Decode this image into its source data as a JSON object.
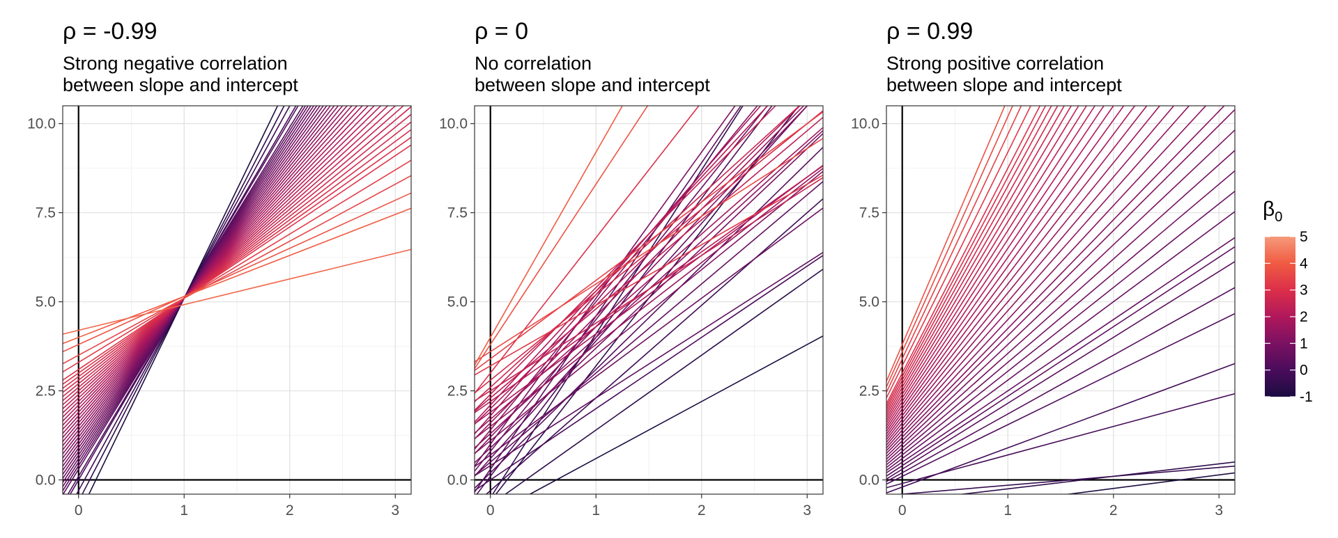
{
  "chart_data": [
    {
      "type": "line",
      "title": "ρ = -0.99",
      "subtitle": [
        "Strong negative correlation",
        "between slope and intercept"
      ],
      "xlabel": "",
      "ylabel": "",
      "xlim": [
        -0.15,
        3.15
      ],
      "ylim": [
        -0.4,
        10.5
      ],
      "xticks": [
        0,
        1,
        2,
        3
      ],
      "yticks": [
        0.0,
        2.5,
        5.0,
        7.5,
        10.0
      ],
      "ytick_labels": [
        "0.0",
        "2.5",
        "5.0",
        "7.5",
        "10.0"
      ],
      "grid": true,
      "series": [
        {
          "intercept": -1.0,
          "slope": 6.1
        },
        {
          "intercept": -0.6,
          "slope": 5.7
        },
        {
          "intercept": -0.3,
          "slope": 5.4
        },
        {
          "intercept": 0.0,
          "slope": 5.1
        },
        {
          "intercept": 0.1,
          "slope": 5.0
        },
        {
          "intercept": 0.3,
          "slope": 4.8
        },
        {
          "intercept": 0.4,
          "slope": 4.7
        },
        {
          "intercept": 0.5,
          "slope": 4.6
        },
        {
          "intercept": 0.6,
          "slope": 4.5
        },
        {
          "intercept": 0.7,
          "slope": 4.4
        },
        {
          "intercept": 0.8,
          "slope": 4.3
        },
        {
          "intercept": 0.9,
          "slope": 4.2
        },
        {
          "intercept": 1.0,
          "slope": 4.1
        },
        {
          "intercept": 1.1,
          "slope": 4.0
        },
        {
          "intercept": 1.2,
          "slope": 3.9
        },
        {
          "intercept": 1.3,
          "slope": 3.8
        },
        {
          "intercept": 1.4,
          "slope": 3.7
        },
        {
          "intercept": 1.5,
          "slope": 3.6
        },
        {
          "intercept": 1.6,
          "slope": 3.5
        },
        {
          "intercept": 1.7,
          "slope": 3.4
        },
        {
          "intercept": 1.8,
          "slope": 3.3
        },
        {
          "intercept": 1.9,
          "slope": 3.2
        },
        {
          "intercept": 2.0,
          "slope": 3.1
        },
        {
          "intercept": 2.1,
          "slope": 3.0
        },
        {
          "intercept": 2.2,
          "slope": 2.9
        },
        {
          "intercept": 2.3,
          "slope": 2.8
        },
        {
          "intercept": 2.4,
          "slope": 2.7
        },
        {
          "intercept": 2.5,
          "slope": 2.6
        },
        {
          "intercept": 2.6,
          "slope": 2.5
        },
        {
          "intercept": 2.7,
          "slope": 2.4
        },
        {
          "intercept": 2.8,
          "slope": 2.3
        },
        {
          "intercept": 2.9,
          "slope": 2.2
        },
        {
          "intercept": 3.0,
          "slope": 2.1
        },
        {
          "intercept": 3.1,
          "slope": 2.0
        },
        {
          "intercept": 3.3,
          "slope": 1.8
        },
        {
          "intercept": 3.5,
          "slope": 1.6
        },
        {
          "intercept": 3.8,
          "slope": 1.35
        },
        {
          "intercept": 4.0,
          "slope": 1.15
        },
        {
          "intercept": 4.2,
          "slope": 0.72
        }
      ]
    },
    {
      "type": "line",
      "title": "ρ = 0",
      "subtitle": [
        "No correlation",
        "between slope and intercept"
      ],
      "xlabel": "",
      "ylabel": "",
      "xlim": [
        -0.15,
        3.15
      ],
      "ylim": [
        -0.4,
        10.5
      ],
      "xticks": [
        0,
        1,
        2,
        3
      ],
      "yticks": [
        0.0,
        2.5,
        5.0,
        7.5,
        10.0
      ],
      "ytick_labels": [
        "0.0",
        "2.5",
        "5.0",
        "7.5",
        "10.0"
      ],
      "grid": true,
      "series": [
        {
          "intercept": -1.0,
          "slope": 1.6
        },
        {
          "intercept": -0.7,
          "slope": 2.1
        },
        {
          "intercept": -0.6,
          "slope": 3.8
        },
        {
          "intercept": -0.5,
          "slope": 4.6
        },
        {
          "intercept": -0.3,
          "slope": 2.6
        },
        {
          "intercept": 0.0,
          "slope": 2.0
        },
        {
          "intercept": 0.1,
          "slope": 3.9
        },
        {
          "intercept": 0.2,
          "slope": 2.9
        },
        {
          "intercept": 0.3,
          "slope": 4.3
        },
        {
          "intercept": 0.4,
          "slope": 1.9
        },
        {
          "intercept": 0.5,
          "slope": 2.5
        },
        {
          "intercept": 0.6,
          "slope": 3.3
        },
        {
          "intercept": 0.7,
          "slope": 2.2
        },
        {
          "intercept": 0.8,
          "slope": 3.7
        },
        {
          "intercept": 0.9,
          "slope": 2.8
        },
        {
          "intercept": 1.0,
          "slope": 4.1
        },
        {
          "intercept": 1.1,
          "slope": 2.4
        },
        {
          "intercept": 1.2,
          "slope": 3.1
        },
        {
          "intercept": 1.3,
          "slope": 2.7
        },
        {
          "intercept": 1.4,
          "slope": 3.6
        },
        {
          "intercept": 1.5,
          "slope": 2.3
        },
        {
          "intercept": 1.6,
          "slope": 3.0
        },
        {
          "intercept": 1.7,
          "slope": 2.6
        },
        {
          "intercept": 1.8,
          "slope": 3.4
        },
        {
          "intercept": 1.9,
          "slope": 2.2
        },
        {
          "intercept": 2.0,
          "slope": 2.9
        },
        {
          "intercept": 2.1,
          "slope": 3.2
        },
        {
          "intercept": 2.2,
          "slope": 2.1
        },
        {
          "intercept": 2.3,
          "slope": 2.5
        },
        {
          "intercept": 2.4,
          "slope": 3.0
        },
        {
          "intercept": 2.5,
          "slope": 1.9
        },
        {
          "intercept": 2.6,
          "slope": 2.7
        },
        {
          "intercept": 2.8,
          "slope": 2.4
        },
        {
          "intercept": 3.0,
          "slope": 3.8
        },
        {
          "intercept": 3.2,
          "slope": 1.7
        },
        {
          "intercept": 3.4,
          "slope": 2.2
        },
        {
          "intercept": 3.6,
          "slope": 1.9
        },
        {
          "intercept": 3.8,
          "slope": 4.5
        },
        {
          "intercept": 4.0,
          "slope": 5.2
        }
      ]
    },
    {
      "type": "line",
      "title": "ρ = 0.99",
      "subtitle": [
        "Strong positive correlation",
        "between slope and intercept"
      ],
      "xlabel": "",
      "ylabel": "",
      "xlim": [
        -0.15,
        3.15
      ],
      "ylim": [
        -0.4,
        10.5
      ],
      "xticks": [
        0,
        1,
        2,
        3
      ],
      "yticks": [
        0.0,
        2.5,
        5.0,
        7.5,
        10.0
      ],
      "ytick_labels": [
        "0.0",
        "2.5",
        "5.0",
        "7.5",
        "10.0"
      ],
      "grid": true,
      "series": [
        {
          "intercept": -1.0,
          "slope": 0.38
        },
        {
          "intercept": -0.6,
          "slope": 0.35
        },
        {
          "intercept": -0.4,
          "slope": 0.25
        },
        {
          "intercept": -0.2,
          "slope": 1.1
        },
        {
          "intercept": -0.1,
          "slope": 0.8
        },
        {
          "intercept": 0.1,
          "slope": 1.45
        },
        {
          "intercept": 0.2,
          "slope": 1.65
        },
        {
          "intercept": 0.3,
          "slope": 1.85
        },
        {
          "intercept": 0.4,
          "slope": 1.95
        },
        {
          "intercept": 0.5,
          "slope": 2.0
        },
        {
          "intercept": 0.6,
          "slope": 2.2
        },
        {
          "intercept": 0.7,
          "slope": 2.35
        },
        {
          "intercept": 0.8,
          "slope": 2.5
        },
        {
          "intercept": 0.9,
          "slope": 2.65
        },
        {
          "intercept": 1.0,
          "slope": 2.8
        },
        {
          "intercept": 1.1,
          "slope": 2.95
        },
        {
          "intercept": 1.2,
          "slope": 3.05
        },
        {
          "intercept": 1.3,
          "slope": 3.2
        },
        {
          "intercept": 1.4,
          "slope": 3.35
        },
        {
          "intercept": 1.5,
          "slope": 3.5
        },
        {
          "intercept": 1.6,
          "slope": 3.65
        },
        {
          "intercept": 1.7,
          "slope": 3.8
        },
        {
          "intercept": 1.8,
          "slope": 3.95
        },
        {
          "intercept": 1.9,
          "slope": 4.1
        },
        {
          "intercept": 2.0,
          "slope": 4.25
        },
        {
          "intercept": 2.1,
          "slope": 4.4
        },
        {
          "intercept": 2.2,
          "slope": 4.55
        },
        {
          "intercept": 2.3,
          "slope": 4.7
        },
        {
          "intercept": 2.4,
          "slope": 4.85
        },
        {
          "intercept": 2.5,
          "slope": 5.0
        },
        {
          "intercept": 2.6,
          "slope": 5.15
        },
        {
          "intercept": 2.7,
          "slope": 5.3
        },
        {
          "intercept": 2.8,
          "slope": 5.45
        },
        {
          "intercept": 2.9,
          "slope": 5.6
        },
        {
          "intercept": 3.0,
          "slope": 5.75
        },
        {
          "intercept": 3.2,
          "slope": 6.0
        },
        {
          "intercept": 3.4,
          "slope": 6.3
        },
        {
          "intercept": 3.6,
          "slope": 6.6
        },
        {
          "intercept": 3.8,
          "slope": 6.9
        }
      ]
    }
  ],
  "legend": {
    "title_main": "β",
    "title_sub": "0",
    "placement": "right",
    "min": -1,
    "max": 5,
    "ticks": [
      5,
      4,
      3,
      2,
      1,
      0,
      -1
    ],
    "colors": [
      "#1b0c41",
      "#4a0c5b",
      "#7b1162",
      "#b0185b",
      "#dc2f4a",
      "#f05b42",
      "#f59a7a"
    ]
  }
}
